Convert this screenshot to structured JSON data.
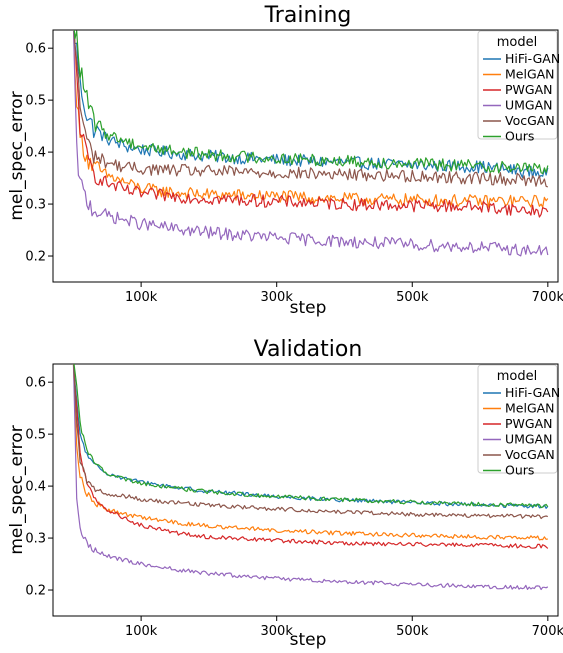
{
  "chart_data": [
    {
      "type": "line",
      "title": "Training",
      "xlabel": "step",
      "ylabel": "mel_spec_error",
      "xlim": [
        -30000,
        715000
      ],
      "ylim": [
        0.15,
        0.635
      ],
      "xticks": [
        100000,
        300000,
        500000,
        700000
      ],
      "xtick_labels": [
        "100k",
        "300k",
        "500k",
        "700k"
      ],
      "yticks": [
        0.2,
        0.3,
        0.4,
        0.5,
        0.6
      ],
      "ytick_labels": [
        "0.2",
        "0.3",
        "0.4",
        "0.5",
        "0.6"
      ],
      "legend": {
        "title": "model",
        "placement": "top-right"
      },
      "noise": 0.012,
      "series": [
        {
          "name": "HiFi-GAN",
          "color": "#1f77b4",
          "x": [
            0,
            5000,
            10000,
            20000,
            30000,
            50000,
            80000,
            100000,
            150000,
            200000,
            300000,
            400000,
            500000,
            600000,
            700000
          ],
          "y": [
            0.64,
            0.6,
            0.53,
            0.47,
            0.445,
            0.425,
            0.41,
            0.405,
            0.398,
            0.392,
            0.385,
            0.38,
            0.375,
            0.372,
            0.358
          ]
        },
        {
          "name": "MelGAN",
          "color": "#ff7f0e",
          "x": [
            0,
            5000,
            10000,
            20000,
            30000,
            50000,
            80000,
            100000,
            150000,
            200000,
            300000,
            400000,
            500000,
            600000,
            700000
          ],
          "y": [
            0.64,
            0.5,
            0.43,
            0.39,
            0.37,
            0.355,
            0.34,
            0.33,
            0.322,
            0.318,
            0.315,
            0.31,
            0.308,
            0.306,
            0.305
          ]
        },
        {
          "name": "PWGAN",
          "color": "#d62728",
          "x": [
            0,
            5000,
            10000,
            20000,
            30000,
            50000,
            80000,
            100000,
            150000,
            200000,
            300000,
            400000,
            500000,
            600000,
            700000
          ],
          "y": [
            0.64,
            0.55,
            0.45,
            0.39,
            0.36,
            0.34,
            0.325,
            0.32,
            0.315,
            0.31,
            0.305,
            0.3,
            0.297,
            0.295,
            0.285
          ]
        },
        {
          "name": "UMGAN",
          "color": "#9467bd",
          "x": [
            0,
            5000,
            10000,
            20000,
            30000,
            50000,
            80000,
            100000,
            150000,
            200000,
            300000,
            400000,
            500000,
            600000,
            700000
          ],
          "y": [
            0.64,
            0.4,
            0.34,
            0.305,
            0.29,
            0.278,
            0.268,
            0.262,
            0.252,
            0.245,
            0.235,
            0.228,
            0.222,
            0.217,
            0.208
          ]
        },
        {
          "name": "VocGAN",
          "color": "#8c564b",
          "x": [
            0,
            5000,
            10000,
            20000,
            30000,
            50000,
            80000,
            100000,
            150000,
            200000,
            300000,
            400000,
            500000,
            600000,
            700000
          ],
          "y": [
            0.64,
            0.58,
            0.49,
            0.42,
            0.395,
            0.38,
            0.37,
            0.368,
            0.365,
            0.363,
            0.36,
            0.357,
            0.354,
            0.35,
            0.345
          ]
        },
        {
          "name": "Ours",
          "color": "#2ca02c",
          "x": [
            0,
            5000,
            10000,
            20000,
            30000,
            50000,
            80000,
            100000,
            150000,
            200000,
            300000,
            400000,
            500000,
            600000,
            700000
          ],
          "y": [
            0.64,
            0.62,
            0.56,
            0.5,
            0.46,
            0.435,
            0.42,
            0.412,
            0.402,
            0.395,
            0.388,
            0.383,
            0.378,
            0.373,
            0.368
          ]
        }
      ]
    },
    {
      "type": "line",
      "title": "Validation",
      "xlabel": "step",
      "ylabel": "mel_spec_error",
      "xlim": [
        -30000,
        715000
      ],
      "ylim": [
        0.15,
        0.635
      ],
      "xticks": [
        100000,
        300000,
        500000,
        700000
      ],
      "xtick_labels": [
        "100k",
        "300k",
        "500k",
        "700k"
      ],
      "yticks": [
        0.2,
        0.3,
        0.4,
        0.5,
        0.6
      ],
      "ytick_labels": [
        "0.2",
        "0.3",
        "0.4",
        "0.5",
        "0.6"
      ],
      "legend": {
        "title": "model",
        "placement": "top-right"
      },
      "noise": 0.004,
      "series": [
        {
          "name": "HiFi-GAN",
          "color": "#1f77b4",
          "x": [
            0,
            5000,
            10000,
            20000,
            30000,
            50000,
            80000,
            100000,
            150000,
            200000,
            300000,
            400000,
            500000,
            600000,
            700000
          ],
          "y": [
            0.64,
            0.56,
            0.5,
            0.46,
            0.44,
            0.425,
            0.413,
            0.408,
            0.398,
            0.39,
            0.38,
            0.373,
            0.368,
            0.364,
            0.361
          ]
        },
        {
          "name": "MelGAN",
          "color": "#ff7f0e",
          "x": [
            0,
            5000,
            10000,
            20000,
            30000,
            50000,
            80000,
            100000,
            150000,
            200000,
            300000,
            400000,
            500000,
            600000,
            700000
          ],
          "y": [
            0.64,
            0.48,
            0.42,
            0.385,
            0.37,
            0.355,
            0.345,
            0.34,
            0.33,
            0.323,
            0.315,
            0.309,
            0.305,
            0.302,
            0.3
          ]
        },
        {
          "name": "PWGAN",
          "color": "#d62728",
          "x": [
            0,
            5000,
            10000,
            20000,
            30000,
            50000,
            80000,
            100000,
            150000,
            200000,
            300000,
            400000,
            500000,
            600000,
            700000
          ],
          "y": [
            0.64,
            0.55,
            0.46,
            0.405,
            0.38,
            0.355,
            0.335,
            0.325,
            0.31,
            0.302,
            0.295,
            0.29,
            0.288,
            0.286,
            0.284
          ]
        },
        {
          "name": "UMGAN",
          "color": "#9467bd",
          "x": [
            0,
            5000,
            10000,
            20000,
            30000,
            50000,
            80000,
            100000,
            150000,
            200000,
            300000,
            400000,
            500000,
            600000,
            700000
          ],
          "y": [
            0.64,
            0.38,
            0.32,
            0.29,
            0.278,
            0.266,
            0.256,
            0.25,
            0.24,
            0.232,
            0.222,
            0.216,
            0.211,
            0.207,
            0.204
          ]
        },
        {
          "name": "VocGAN",
          "color": "#8c564b",
          "x": [
            0,
            5000,
            10000,
            20000,
            30000,
            50000,
            80000,
            100000,
            150000,
            200000,
            300000,
            400000,
            500000,
            600000,
            700000
          ],
          "y": [
            0.64,
            0.52,
            0.45,
            0.41,
            0.395,
            0.385,
            0.38,
            0.375,
            0.368,
            0.363,
            0.356,
            0.35,
            0.346,
            0.343,
            0.341
          ]
        },
        {
          "name": "Ours",
          "color": "#2ca02c",
          "x": [
            0,
            5000,
            10000,
            20000,
            30000,
            50000,
            80000,
            100000,
            150000,
            200000,
            300000,
            400000,
            500000,
            600000,
            700000
          ],
          "y": [
            0.64,
            0.6,
            0.52,
            0.47,
            0.445,
            0.425,
            0.412,
            0.406,
            0.396,
            0.389,
            0.38,
            0.374,
            0.369,
            0.365,
            0.362
          ]
        }
      ]
    }
  ]
}
